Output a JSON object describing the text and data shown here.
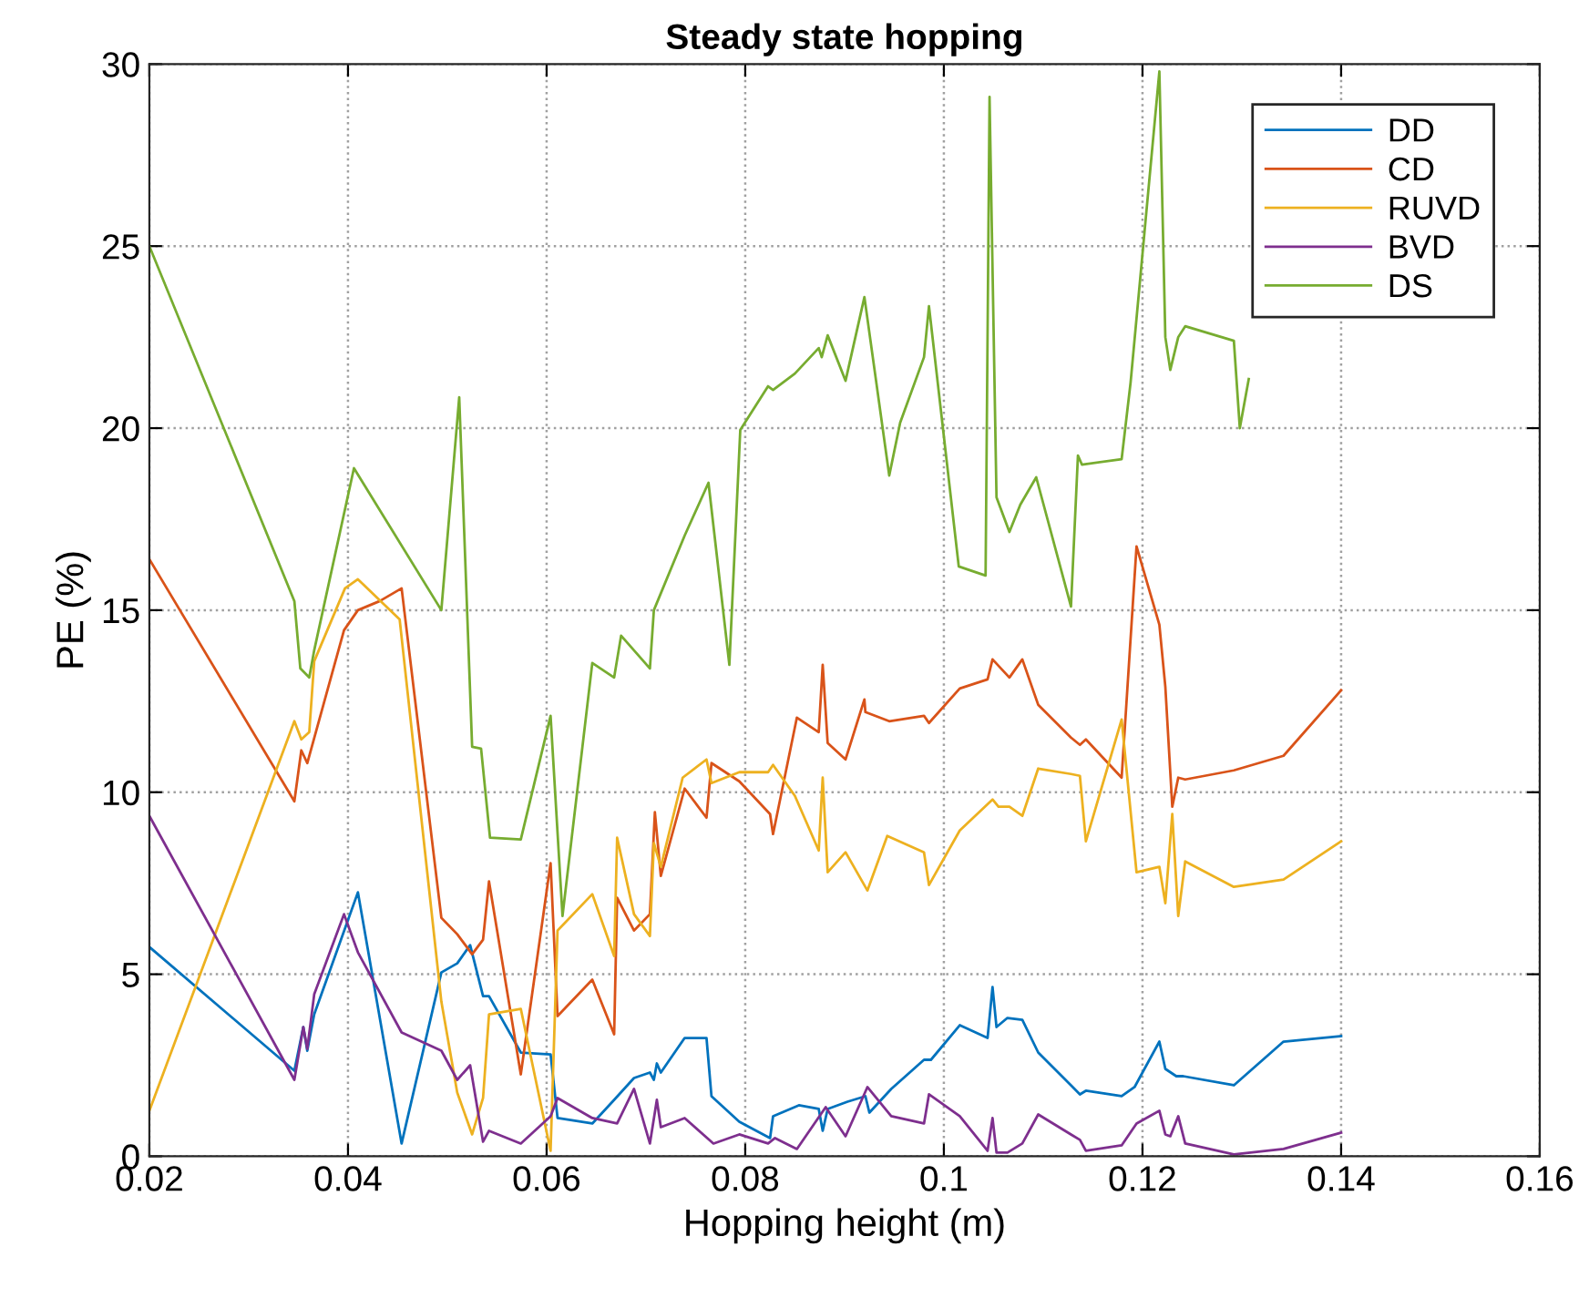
{
  "chart_data": {
    "type": "line",
    "title": "Steady state hopping",
    "xlabel": "Hopping height (m)",
    "ylabel": "PE (%)",
    "xlim": [
      0.02,
      0.16
    ],
    "xticks": [
      0.02,
      0.04,
      0.06,
      0.08,
      0.1,
      0.12,
      0.14,
      0.16
    ],
    "ylim": [
      0,
      30
    ],
    "yticks": [
      0,
      5,
      10,
      15,
      20,
      25,
      30
    ],
    "grid": true,
    "legend": "top right",
    "line_style": "solid",
    "marker": "none",
    "series": [
      {
        "name": "DD",
        "color": "#0072bd",
        "x": [
          0.02,
          0.0346,
          0.0355,
          0.0359,
          0.0366,
          0.041,
          0.0454,
          0.0494,
          0.051,
          0.0523,
          0.0536,
          0.0542,
          0.0574,
          0.0604,
          0.0611,
          0.0646,
          0.0668,
          0.0688,
          0.0704,
          0.0708,
          0.0711,
          0.0715,
          0.0739,
          0.0761,
          0.0766,
          0.0794,
          0.0825,
          0.0828,
          0.0854,
          0.0874,
          0.0878,
          0.0883,
          0.0903,
          0.0921,
          0.0925,
          0.0947,
          0.098,
          0.0987,
          0.1016,
          0.1044,
          0.1049,
          0.1053,
          0.1064,
          0.1079,
          0.1095,
          0.1128,
          0.1137,
          0.1143,
          0.1179,
          0.1192,
          0.1217,
          0.1223,
          0.1234,
          0.1241,
          0.1292,
          0.1342,
          0.14
        ],
        "values": [
          5.75,
          2.35,
          3.55,
          2.9,
          3.9,
          7.25,
          0.35,
          5.05,
          5.3,
          5.8,
          4.4,
          4.4,
          2.85,
          2.8,
          1.05,
          0.9,
          1.55,
          2.15,
          2.3,
          2.1,
          2.55,
          2.3,
          3.25,
          3.25,
          1.65,
          0.95,
          0.5,
          1.1,
          1.4,
          1.3,
          0.7,
          1.3,
          1.5,
          1.65,
          1.2,
          1.85,
          2.65,
          2.65,
          3.6,
          3.25,
          4.65,
          3.55,
          3.8,
          3.75,
          2.85,
          1.95,
          1.7,
          1.8,
          1.65,
          1.9,
          3.15,
          2.4,
          2.2,
          2.2,
          1.95,
          3.15,
          3.3
        ]
      },
      {
        "name": "CD",
        "color": "#d95319",
        "x": [
          0.02,
          0.0346,
          0.0353,
          0.0359,
          0.0396,
          0.041,
          0.0432,
          0.0454,
          0.0494,
          0.051,
          0.0525,
          0.0536,
          0.0542,
          0.0574,
          0.0604,
          0.0611,
          0.0646,
          0.0668,
          0.0671,
          0.0688,
          0.0704,
          0.0709,
          0.0715,
          0.0739,
          0.0761,
          0.0766,
          0.0794,
          0.0825,
          0.0828,
          0.0852,
          0.0874,
          0.0878,
          0.0883,
          0.0901,
          0.092,
          0.0921,
          0.0945,
          0.098,
          0.0985,
          0.1016,
          0.1044,
          0.1049,
          0.1066,
          0.1079,
          0.1095,
          0.1128,
          0.1137,
          0.1143,
          0.1179,
          0.1194,
          0.1217,
          0.1223,
          0.123,
          0.1236,
          0.1243,
          0.1292,
          0.1342,
          0.14
        ],
        "values": [
          16.4,
          9.75,
          11.15,
          10.8,
          14.45,
          15,
          15.25,
          15.6,
          6.55,
          6.1,
          5.55,
          5.95,
          7.55,
          2.25,
          8.05,
          3.85,
          4.85,
          3.35,
          7.1,
          6.2,
          6.65,
          9.45,
          7.7,
          10.1,
          9.3,
          10.8,
          10.3,
          9.4,
          8.85,
          12.05,
          11.65,
          13.5,
          11.35,
          10.9,
          12.55,
          12.2,
          11.95,
          12.1,
          11.9,
          12.85,
          13.1,
          13.65,
          13.15,
          13.65,
          12.4,
          11.5,
          11.3,
          11.45,
          10.4,
          16.75,
          14.6,
          12.9,
          9.6,
          10.4,
          10.35,
          10.6,
          11,
          12.8
        ]
      },
      {
        "name": "RUVD",
        "color": "#edb120",
        "x": [
          0.02,
          0.0346,
          0.0353,
          0.0361,
          0.0366,
          0.0397,
          0.041,
          0.0452,
          0.0494,
          0.051,
          0.0525,
          0.0536,
          0.0542,
          0.0574,
          0.0604,
          0.0611,
          0.0646,
          0.0668,
          0.0671,
          0.0688,
          0.0704,
          0.0708,
          0.0715,
          0.0737,
          0.0761,
          0.0766,
          0.0794,
          0.0823,
          0.0828,
          0.085,
          0.0874,
          0.0878,
          0.0883,
          0.0901,
          0.0923,
          0.0943,
          0.098,
          0.0985,
          0.1016,
          0.1049,
          0.1055,
          0.1066,
          0.1079,
          0.1095,
          0.1128,
          0.1137,
          0.1143,
          0.1179,
          0.1194,
          0.1217,
          0.1223,
          0.123,
          0.1236,
          0.1243,
          0.1292,
          0.1342,
          0.14
        ],
        "values": [
          1.25,
          11.95,
          11.45,
          11.65,
          13.6,
          15.6,
          15.85,
          14.75,
          4.25,
          1.75,
          0.6,
          1.6,
          3.9,
          4.05,
          0.15,
          6.2,
          7.2,
          5.5,
          8.75,
          6.65,
          6.05,
          8.6,
          7.95,
          10.4,
          10.9,
          10.25,
          10.55,
          10.55,
          10.75,
          9.9,
          8.4,
          10.4,
          7.8,
          8.35,
          7.3,
          8.8,
          8.35,
          7.45,
          8.95,
          9.8,
          9.6,
          9.6,
          9.35,
          10.65,
          10.5,
          10.45,
          8.65,
          12,
          7.8,
          7.95,
          6.95,
          9.4,
          6.6,
          8.1,
          7.4,
          7.6,
          8.65
        ]
      },
      {
        "name": "BVD",
        "color": "#7e2f8e",
        "x": [
          0.02,
          0.0346,
          0.0355,
          0.0359,
          0.0366,
          0.0396,
          0.041,
          0.0454,
          0.0494,
          0.051,
          0.0523,
          0.0536,
          0.0542,
          0.0574,
          0.0604,
          0.0611,
          0.0646,
          0.0671,
          0.0688,
          0.0704,
          0.0711,
          0.0715,
          0.0739,
          0.0768,
          0.0794,
          0.0823,
          0.083,
          0.0852,
          0.0881,
          0.0901,
          0.0923,
          0.0947,
          0.098,
          0.0985,
          0.1016,
          0.1044,
          0.1049,
          0.1053,
          0.1064,
          0.1079,
          0.1095,
          0.1128,
          0.1137,
          0.1143,
          0.1179,
          0.1194,
          0.1217,
          0.1223,
          0.1228,
          0.1236,
          0.1243,
          0.1292,
          0.1342,
          0.14
        ],
        "values": [
          9.35,
          2.1,
          3.55,
          2.95,
          4.45,
          6.65,
          5.6,
          3.4,
          2.9,
          2.1,
          2.5,
          0.4,
          0.7,
          0.35,
          1.1,
          1.6,
          1.05,
          0.9,
          1.85,
          0.35,
          1.55,
          0.8,
          1.05,
          0.35,
          0.6,
          0.35,
          0.5,
          0.2,
          1.35,
          0.55,
          1.9,
          1.1,
          0.9,
          1.7,
          1.1,
          0.15,
          1.05,
          0.1,
          0.1,
          0.35,
          1.15,
          0.6,
          0.45,
          0.15,
          0.3,
          0.9,
          1.25,
          0.6,
          0.55,
          1.1,
          0.35,
          0.05,
          0.2,
          0.65
        ]
      },
      {
        "name": "DS",
        "color": "#77ac30",
        "x": [
          0.02,
          0.0346,
          0.0352,
          0.0361,
          0.0366,
          0.0406,
          0.0494,
          0.0512,
          0.0525,
          0.0534,
          0.0543,
          0.0574,
          0.0604,
          0.0616,
          0.0646,
          0.0668,
          0.0675,
          0.0704,
          0.0708,
          0.0739,
          0.0763,
          0.0784,
          0.0795,
          0.0823,
          0.0828,
          0.085,
          0.0874,
          0.0877,
          0.0883,
          0.0901,
          0.092,
          0.0945,
          0.0956,
          0.098,
          0.0985,
          0.1015,
          0.1042,
          0.1046,
          0.1053,
          0.1066,
          0.1077,
          0.1093,
          0.1128,
          0.1135,
          0.1139,
          0.1179,
          0.1188,
          0.1217,
          0.1223,
          0.1228,
          0.1236,
          0.1243,
          0.1292,
          0.1298,
          0.1307
        ],
        "values": [
          25,
          15.25,
          13.4,
          13.15,
          13.9,
          18.9,
          15,
          20.85,
          11.25,
          11.2,
          8.75,
          8.7,
          12.1,
          6.6,
          13.55,
          13.15,
          14.3,
          13.4,
          15,
          17.05,
          18.5,
          13.5,
          19.95,
          21.15,
          21.05,
          21.5,
          22.2,
          21.95,
          22.55,
          21.3,
          23.6,
          18.7,
          20.15,
          21.95,
          23.35,
          16.2,
          15.95,
          29.1,
          18.1,
          17.15,
          17.9,
          18.65,
          15.1,
          19.25,
          19,
          19.15,
          21.25,
          29.8,
          22.5,
          21.6,
          22.5,
          22.8,
          22.4,
          20,
          21.35
        ]
      }
    ]
  }
}
